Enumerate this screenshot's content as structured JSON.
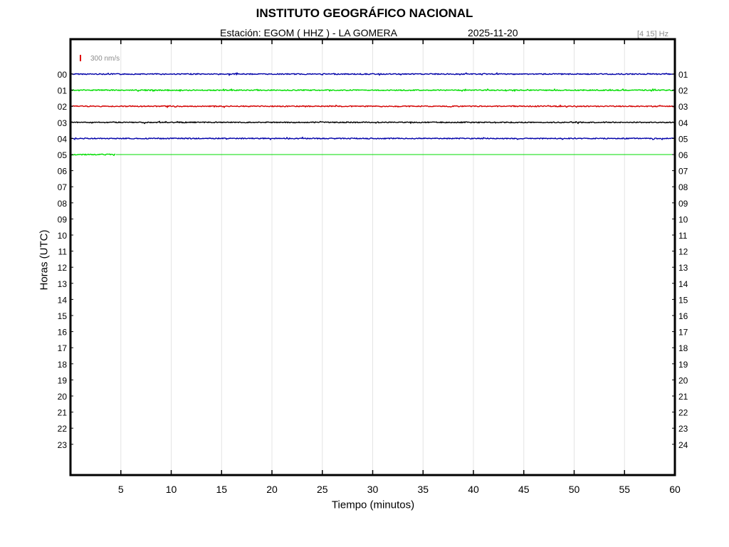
{
  "header": {
    "title": "INSTITUTO GEOGRÁFICO NACIONAL",
    "station": "Estación:  EGOM ( HHZ ) - LA GOMERA",
    "date": "2025-11-20",
    "band": "[4 15] Hz"
  },
  "chart_data": {
    "type": "line",
    "title": "INSTITUTO GEOGRÁFICO NACIONAL",
    "xlabel": "Tiempo (minutos)",
    "ylabel": "Horas (UTC)",
    "xlim": [
      0,
      60
    ],
    "x_ticks": [
      "5",
      "10",
      "15",
      "20",
      "25",
      "30",
      "35",
      "40",
      "45",
      "50",
      "55",
      "60"
    ],
    "y_ticks_left": [
      "00",
      "01",
      "02",
      "03",
      "04",
      "05",
      "06",
      "07",
      "08",
      "09",
      "10",
      "11",
      "12",
      "13",
      "14",
      "15",
      "16",
      "17",
      "18",
      "19",
      "20",
      "21",
      "22",
      "23"
    ],
    "y_ticks_right": [
      "01",
      "02",
      "03",
      "04",
      "05",
      "06",
      "07",
      "08",
      "09",
      "10",
      "11",
      "12",
      "13",
      "14",
      "15",
      "16",
      "17",
      "18",
      "19",
      "20",
      "21",
      "22",
      "23",
      "24"
    ],
    "grid": "vertical",
    "scale_bar": {
      "label": "300 nm/s",
      "color": "#e00000"
    },
    "series": [
      {
        "hour": "00",
        "color": "#0000a8",
        "start_min": 0,
        "end_min": 60
      },
      {
        "hour": "01",
        "color": "#00dd00",
        "start_min": 0,
        "end_min": 60
      },
      {
        "hour": "02",
        "color": "#d40000",
        "start_min": 0,
        "end_min": 60
      },
      {
        "hour": "03",
        "color": "#000000",
        "start_min": 0,
        "end_min": 60
      },
      {
        "hour": "04",
        "color": "#0000a8",
        "start_min": 0,
        "end_min": 60
      },
      {
        "hour": "05",
        "color": "#00dd00",
        "start_min": 0,
        "end_min": 4.5
      }
    ]
  }
}
